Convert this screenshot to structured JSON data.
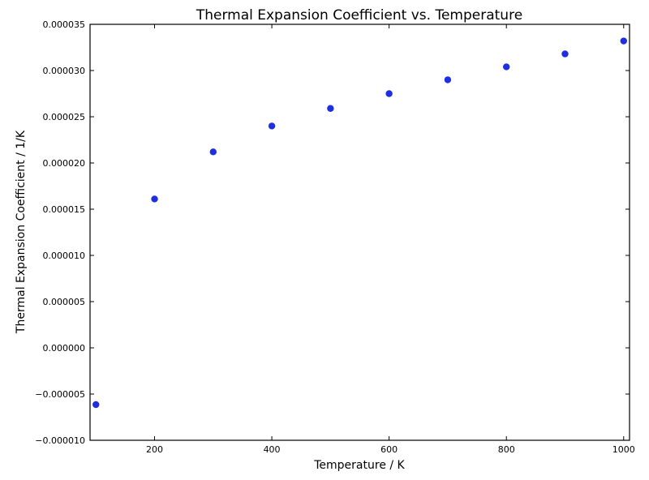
{
  "chart_data": {
    "type": "scatter",
    "title": "Thermal Expansion Coefficient vs. Temperature",
    "xlabel": "Temperature / K",
    "ylabel": "Thermal Expansion Coefficient / 1/K",
    "xlim": [
      90,
      1010
    ],
    "ylim": [
      -1e-05,
      3.5e-05
    ],
    "xticks": [
      200,
      400,
      600,
      800,
      1000
    ],
    "xtick_labels": [
      "200",
      "400",
      "600",
      "800",
      "1000"
    ],
    "yticks": [
      -1e-05,
      -5e-06,
      0,
      5e-06,
      1e-05,
      1.5e-05,
      2e-05,
      2.5e-05,
      3e-05,
      3.5e-05
    ],
    "ytick_labels": [
      "−0.000010",
      "−0.000005",
      "0.000000",
      "0.000005",
      "0.000010",
      "0.000015",
      "0.000020",
      "0.000025",
      "0.000030",
      "0.000035"
    ],
    "grid": false,
    "marker_color": "#1f2fe0",
    "x": [
      100,
      200,
      300,
      400,
      500,
      600,
      700,
      800,
      900,
      1000
    ],
    "y": [
      -6.14e-06,
      1.61e-05,
      2.12e-05,
      2.4e-05,
      2.59e-05,
      2.75e-05,
      2.9e-05,
      3.04e-05,
      3.18e-05,
      3.32e-05
    ]
  }
}
